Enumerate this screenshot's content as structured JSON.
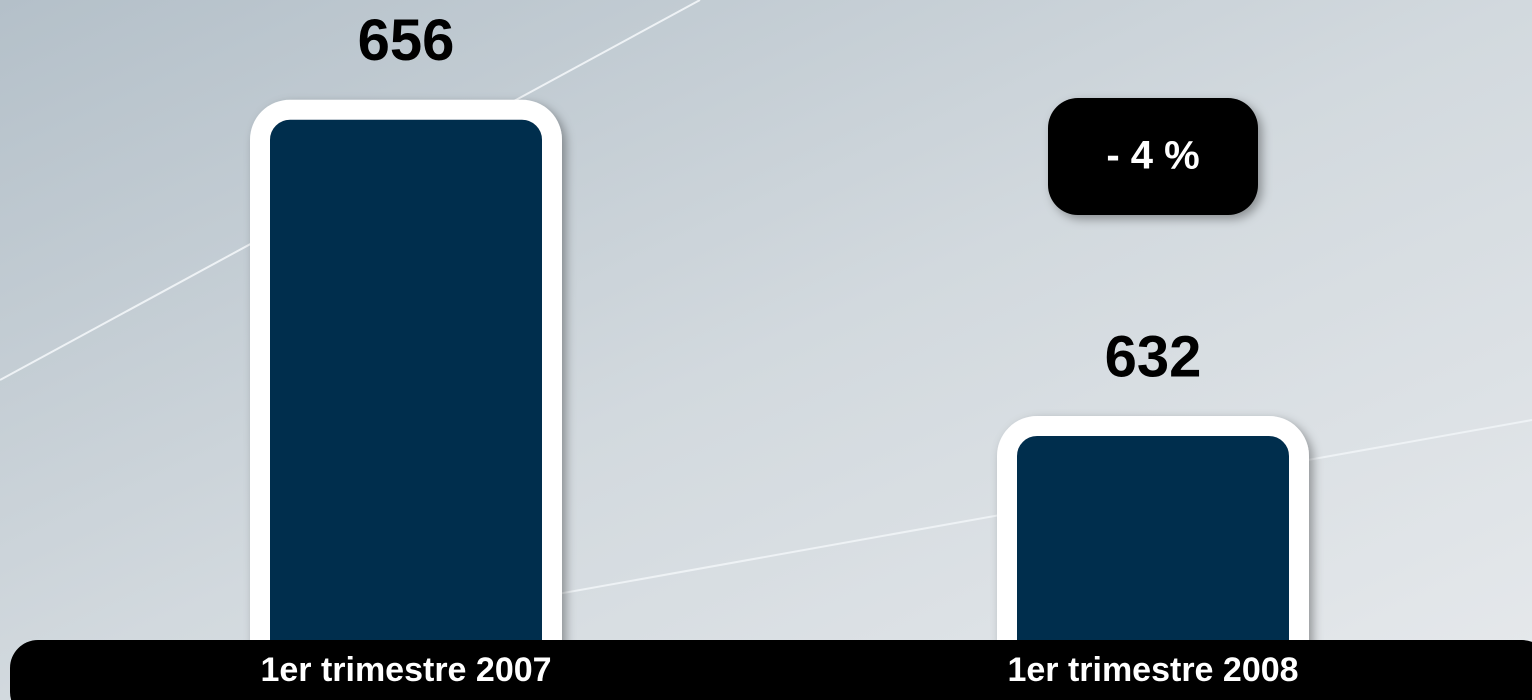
{
  "chart_data": {
    "type": "bar",
    "categories": [
      "1er trimestre 2007",
      "1er trimestre 2008"
    ],
    "values": [
      656,
      632
    ],
    "color": "#062d4d",
    "ylim": [
      615,
      660
    ],
    "annotation": "- 4 %"
  }
}
